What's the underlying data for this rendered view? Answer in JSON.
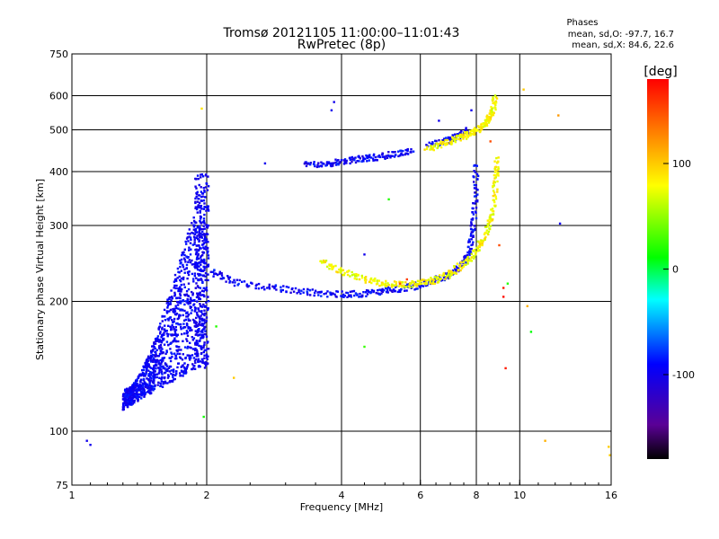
{
  "chart_data": {
    "type": "scatter",
    "title": "Tromsø 20121105 11:00:00–11:01:43",
    "subtitle": "RwPretec (8p)",
    "xlabel": "Frequency [MHz]",
    "ylabel": "Stationary phase Virtual Height [km]",
    "x_scale": "log",
    "y_scale": "log",
    "xlim": [
      1,
      16
    ],
    "ylim": [
      75,
      750
    ],
    "x_ticks": [
      1,
      2,
      4,
      6,
      8,
      10,
      16
    ],
    "y_ticks": [
      75,
      100,
      200,
      300,
      400,
      500,
      600,
      750
    ],
    "grid_x": [
      2,
      4,
      6,
      8,
      10
    ],
    "grid_y": [
      100,
      200,
      300,
      400,
      500,
      600
    ],
    "grid": true,
    "stats": {
      "heading": "Phases",
      "line_o": "mean, sd,O: -97.7, 16.7",
      "line_x": "mean, sd,X:  84.6, 22.6"
    },
    "colorbar": {
      "label": "[deg]",
      "range": [
        -180,
        180
      ],
      "ticks": [
        -100,
        0,
        100
      ],
      "colors": {
        "black": "#000000",
        "violet": "#5a0096",
        "blue": "#0000ff",
        "cyan": "#00ffff",
        "green": "#00ff00",
        "yellow": "#ffff00",
        "red": "#ff0000"
      }
    },
    "traces": [
      {
        "kind": "cloud",
        "f_range": [
          1.3,
          1.98
        ],
        "h_range": [
          112,
          390
        ],
        "phase": -95,
        "count": 1100
      },
      {
        "kind": "column",
        "f_range": [
          1.88,
          2.02
        ],
        "h_range": [
          140,
          395
        ],
        "phase": -98,
        "count": 320
      },
      {
        "kind": "curve",
        "phase": -95,
        "points": [
          [
            2.05,
            235
          ],
          [
            2.3,
            222
          ],
          [
            2.8,
            215
          ],
          [
            3.3,
            211
          ],
          [
            3.8,
            208
          ],
          [
            4.3,
            208
          ],
          [
            4.8,
            210
          ],
          [
            5.3,
            213
          ],
          [
            5.8,
            217
          ],
          [
            6.3,
            222
          ],
          [
            6.8,
            228
          ],
          [
            7.3,
            238
          ],
          [
            7.7,
            258
          ],
          [
            7.85,
            290
          ],
          [
            7.95,
            340
          ],
          [
            8.0,
            420
          ]
        ]
      },
      {
        "kind": "curve",
        "phase": 80,
        "points": [
          [
            3.6,
            248
          ],
          [
            4.0,
            235
          ],
          [
            4.5,
            225
          ],
          [
            5.0,
            220
          ],
          [
            5.5,
            218
          ],
          [
            6.0,
            220
          ],
          [
            6.5,
            224
          ],
          [
            7.0,
            232
          ],
          [
            7.5,
            245
          ],
          [
            8.0,
            262
          ],
          [
            8.4,
            285
          ],
          [
            8.7,
            320
          ],
          [
            8.85,
            380
          ],
          [
            8.9,
            430
          ]
        ]
      },
      {
        "kind": "curve",
        "phase": -95,
        "points": [
          [
            3.3,
            415
          ],
          [
            3.7,
            418
          ],
          [
            4.0,
            422
          ],
          [
            4.4,
            428
          ],
          [
            4.8,
            432
          ],
          [
            5.3,
            440
          ],
          [
            5.8,
            448
          ]
        ]
      },
      {
        "kind": "curve",
        "phase": -95,
        "points": [
          [
            6.2,
            460
          ],
          [
            6.8,
            470
          ],
          [
            7.2,
            480
          ],
          [
            7.7,
            500
          ]
        ]
      },
      {
        "kind": "curve",
        "phase": 80,
        "points": [
          [
            6.2,
            450
          ],
          [
            6.8,
            465
          ],
          [
            7.3,
            478
          ],
          [
            7.8,
            490
          ],
          [
            8.2,
            505
          ],
          [
            8.5,
            525
          ],
          [
            8.7,
            550
          ],
          [
            8.8,
            600
          ]
        ]
      }
    ],
    "scatter": [
      {
        "f": 1.95,
        "h": 560,
        "phase": 90
      },
      {
        "f": 1.97,
        "h": 108,
        "phase": 15
      },
      {
        "f": 1.08,
        "h": 95,
        "phase": -100
      },
      {
        "f": 1.1,
        "h": 93,
        "phase": -100
      },
      {
        "f": 2.1,
        "h": 175,
        "phase": 20
      },
      {
        "f": 2.3,
        "h": 133,
        "phase": 100
      },
      {
        "f": 2.7,
        "h": 418,
        "phase": -100
      },
      {
        "f": 3.85,
        "h": 580,
        "phase": -100
      },
      {
        "f": 3.8,
        "h": 555,
        "phase": -100
      },
      {
        "f": 4.5,
        "h": 257,
        "phase": -100
      },
      {
        "f": 4.5,
        "h": 157,
        "phase": 25
      },
      {
        "f": 5.1,
        "h": 345,
        "phase": 20
      },
      {
        "f": 5.4,
        "h": 220,
        "phase": 150
      },
      {
        "f": 5.6,
        "h": 225,
        "phase": 155
      },
      {
        "f": 6.6,
        "h": 525,
        "phase": -100
      },
      {
        "f": 7.8,
        "h": 555,
        "phase": -100
      },
      {
        "f": 8.6,
        "h": 470,
        "phase": 150
      },
      {
        "f": 9.0,
        "h": 270,
        "phase": 150
      },
      {
        "f": 9.2,
        "h": 215,
        "phase": 170
      },
      {
        "f": 9.2,
        "h": 205,
        "phase": 175
      },
      {
        "f": 9.3,
        "h": 140,
        "phase": 170
      },
      {
        "f": 9.4,
        "h": 220,
        "phase": 20
      },
      {
        "f": 10.2,
        "h": 620,
        "phase": 100
      },
      {
        "f": 10.4,
        "h": 195,
        "phase": 110
      },
      {
        "f": 10.6,
        "h": 170,
        "phase": 10
      },
      {
        "f": 11.4,
        "h": 95,
        "phase": 110
      },
      {
        "f": 12.2,
        "h": 540,
        "phase": 120
      },
      {
        "f": 12.3,
        "h": 303,
        "phase": -100
      },
      {
        "f": 15.8,
        "h": 92,
        "phase": 100
      },
      {
        "f": 15.9,
        "h": 88,
        "phase": 100
      }
    ]
  }
}
